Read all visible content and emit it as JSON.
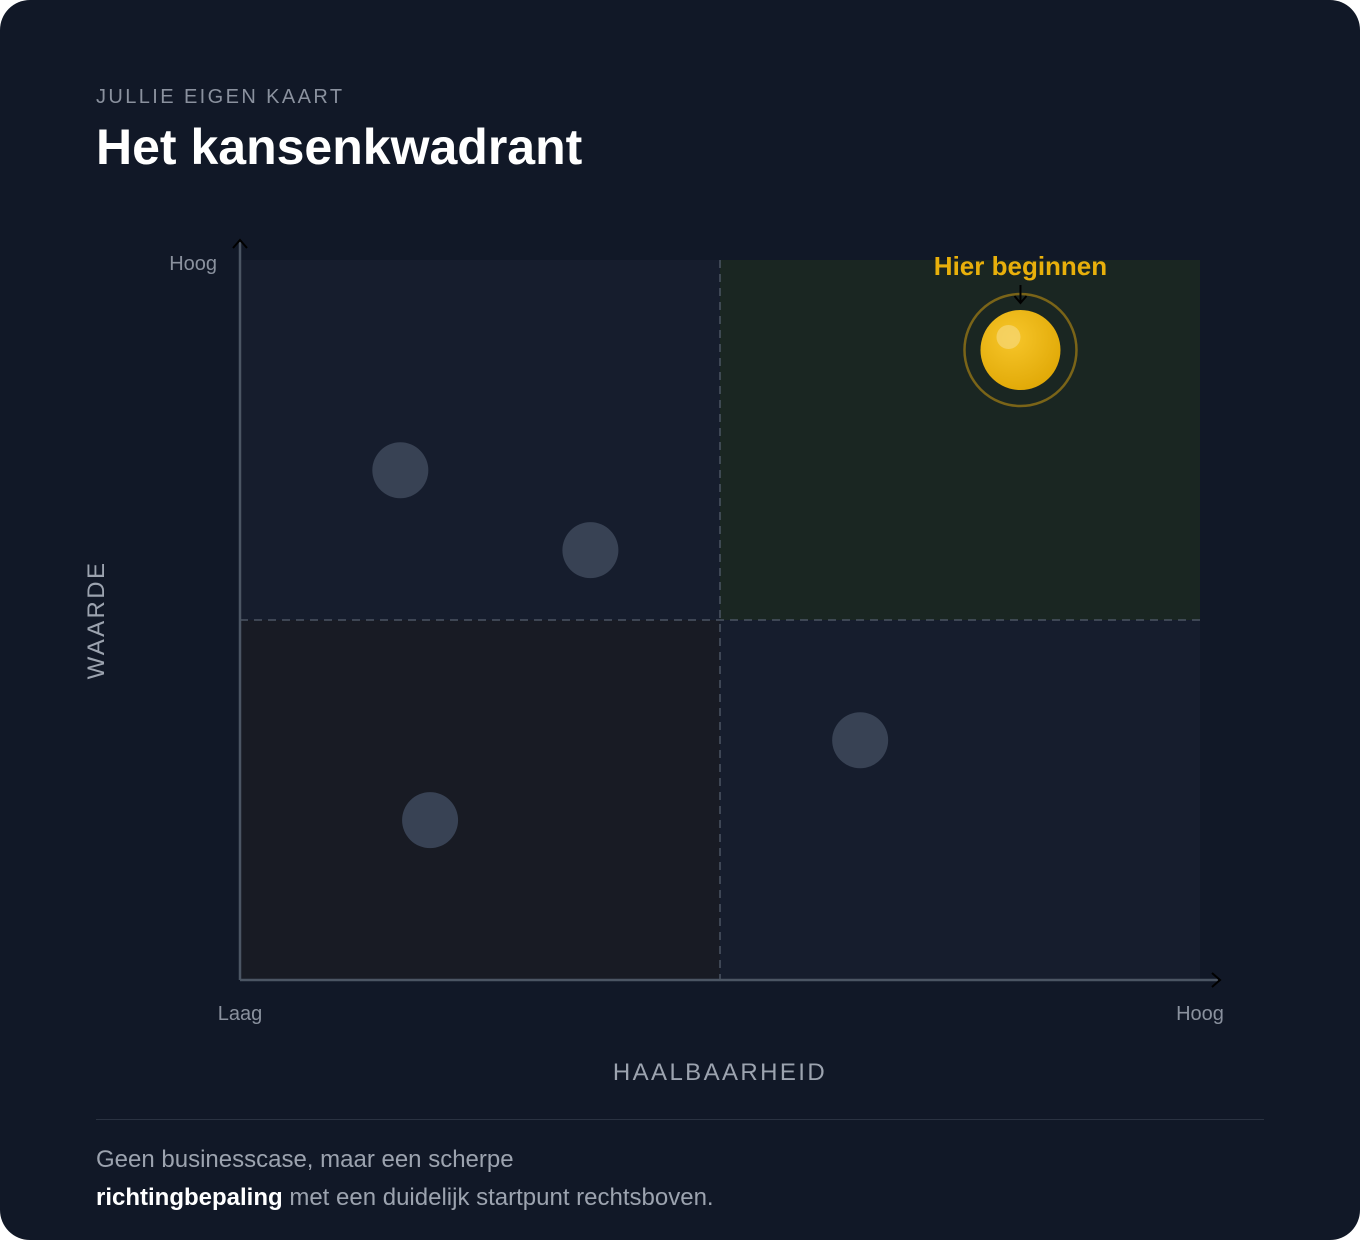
{
  "header": {
    "eyebrow": "JULLIE EIGEN KAART",
    "title": "Het kansenkwadrant"
  },
  "caption": {
    "line1": "Geen businesscase, maar een scherpe",
    "bold": "richtingbepaling",
    "rest": " met een duidelijk startpunt rechtsboven."
  },
  "colors": {
    "background": "#111827",
    "quadrant_high_high": "#1a2622",
    "quadrant_default": "#161d2d",
    "quadrant_low_low": "#181b24",
    "point": "#384254",
    "highlight": "#e8b00b",
    "highlight_label": "#e8b00b",
    "axis": "#4b5563",
    "grid": "#4b5563"
  },
  "chart_data": {
    "type": "scatter",
    "title": "Het kansenkwadrant",
    "xlabel": "HAALBAARHEID",
    "ylabel": "WAARDE",
    "x_ticks": [
      "Laag",
      "Hoog"
    ],
    "y_ticks": [
      "Hoog"
    ],
    "xlim": [
      0,
      1
    ],
    "ylim": [
      0,
      1
    ],
    "quadrant_split": {
      "x": 0.5,
      "y": 0.5
    },
    "grid": false,
    "legend": "none",
    "points": [
      {
        "x": 0.167,
        "y": 0.708
      },
      {
        "x": 0.365,
        "y": 0.597
      },
      {
        "x": 0.198,
        "y": 0.222
      },
      {
        "x": 0.646,
        "y": 0.333
      }
    ],
    "highlight": {
      "x": 0.813,
      "y": 0.875,
      "label": "Hier beginnen"
    }
  }
}
